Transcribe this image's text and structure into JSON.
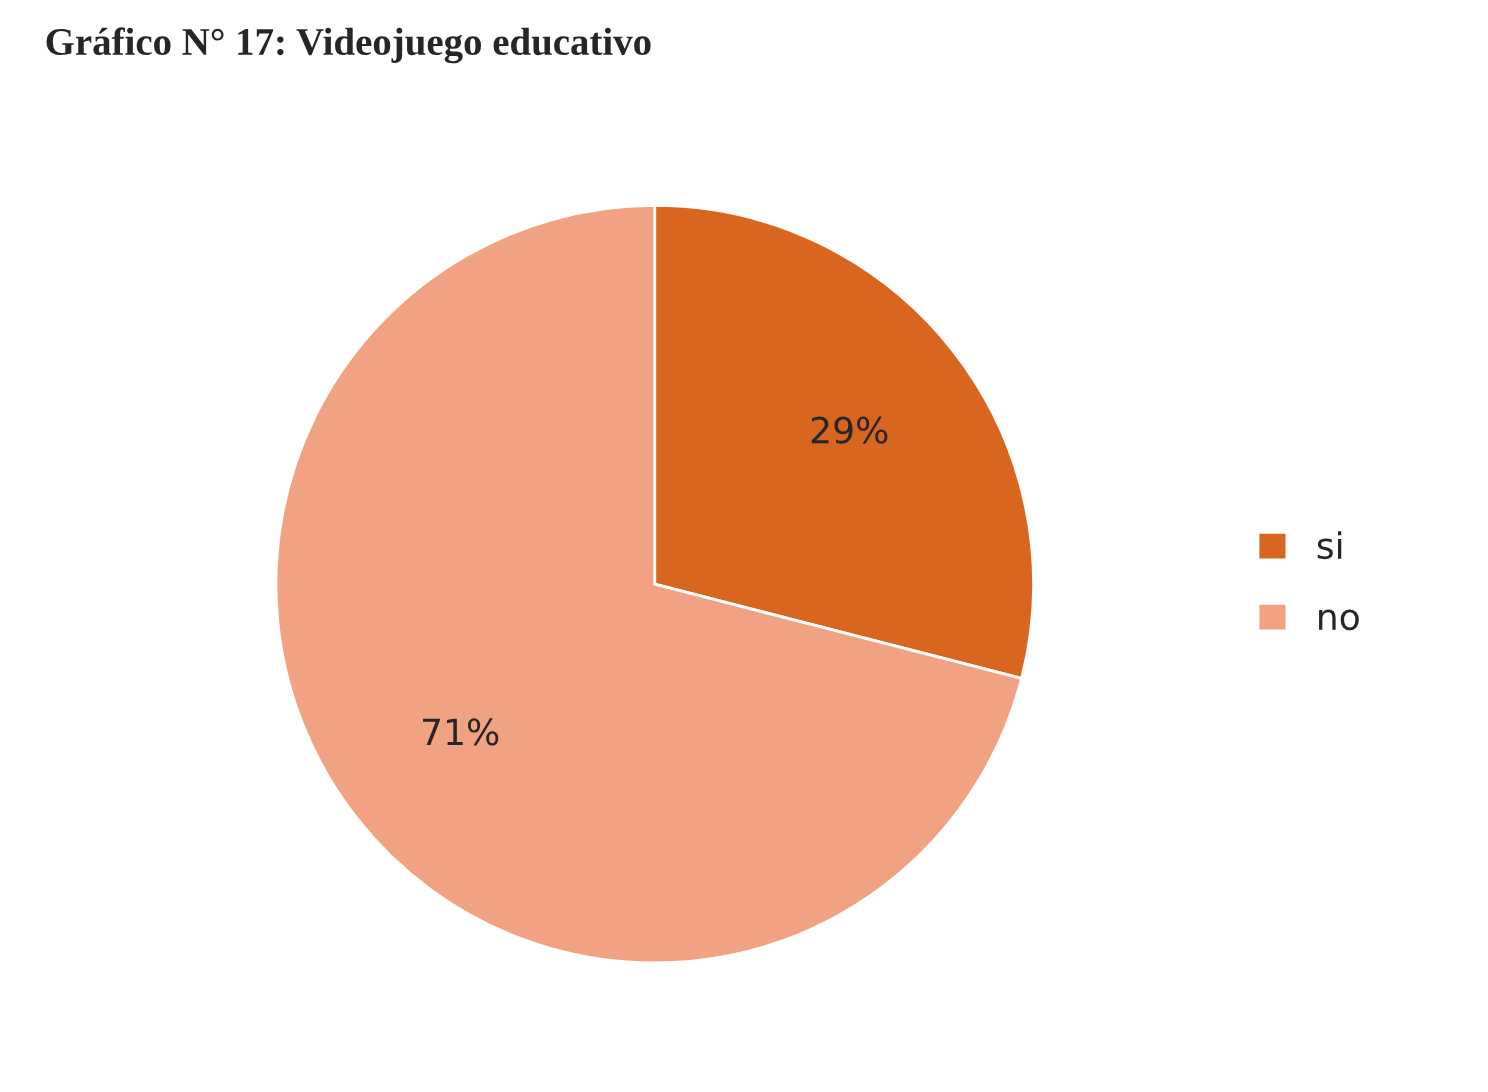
{
  "chart_data": {
    "type": "pie",
    "title": "Gráfico N° 17: Videojuego educativo",
    "categories": [
      "si",
      "no"
    ],
    "values": [
      29,
      71
    ],
    "colors": [
      "#d9661f",
      "#f0a283"
    ],
    "value_labels": [
      "29%",
      "71%"
    ],
    "legend": "right"
  }
}
